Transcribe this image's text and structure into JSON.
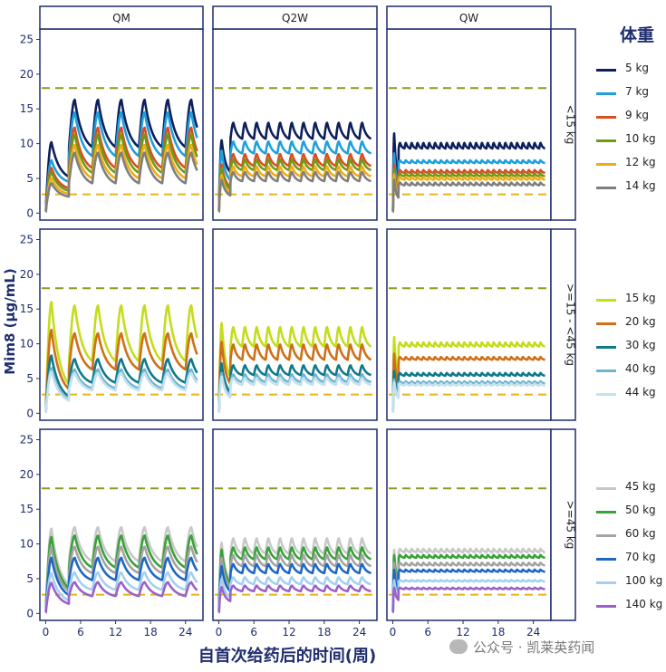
{
  "chart_data": {
    "type": "line",
    "xlabel": "自首次给药后的时间(周)",
    "ylabel": "Mim8 (µg/mL)",
    "xlim": [
      -1,
      27
    ],
    "ylim": [
      -1,
      26.5
    ],
    "x_ticks": [
      0,
      6,
      12,
      18,
      24
    ],
    "y_ticks": [
      0,
      5,
      10,
      15,
      20,
      25
    ],
    "reference_lines": [
      {
        "y": 18,
        "color": "#8b9a1a",
        "style": "dashed"
      },
      {
        "y": 2.7,
        "color": "#e8b316",
        "style": "dashed"
      }
    ],
    "columns": [
      "QM",
      "Q2W",
      "QW"
    ],
    "rows": [
      "<15 kg",
      ">=15 - <45 kg",
      ">=45 kg"
    ],
    "legend_title": "体重",
    "grid": false,
    "legend_position": "right",
    "groups": [
      {
        "row": "<15 kg",
        "series": [
          {
            "name": "5 kg",
            "color": "#0d1f5c",
            "ss": {
              "QM": [
                9.5,
                16.3
              ],
              "Q2W": [
                10.7,
                13.0
              ],
              "QW": [
                9.3,
                10.1
              ]
            },
            "first_peak": {
              "QM": 10.2,
              "Q2W": 10.5,
              "QW": 11.5
            }
          },
          {
            "name": "7 kg",
            "color": "#1ea0dc",
            "ss": {
              "QM": [
                8.2,
                14.5
              ],
              "Q2W": [
                8.6,
                10.3
              ],
              "QW": [
                7.2,
                7.6
              ]
            },
            "first_peak": {
              "QM": 7.6,
              "Q2W": 9.0,
              "QW": 8.6
            }
          },
          {
            "name": "9 kg",
            "color": "#d94f23",
            "ss": {
              "QM": [
                6.5,
                12.3
              ],
              "Q2W": [
                6.8,
                8.5
              ],
              "QW": [
                5.8,
                6.2
              ]
            },
            "first_peak": {
              "QM": 6.5,
              "Q2W": 7.0,
              "QW": 7.0
            }
          },
          {
            "name": "10 kg",
            "color": "#6f9a17",
            "ss": {
              "QM": [
                5.8,
                11.3
              ],
              "Q2W": [
                6.2,
                7.7
              ],
              "QW": [
                5.3,
                5.7
              ]
            },
            "first_peak": {
              "QM": 5.9,
              "Q2W": 6.5,
              "QW": 6.3
            }
          },
          {
            "name": "12 kg",
            "color": "#efac19",
            "ss": {
              "QM": [
                5.0,
                9.8
              ],
              "Q2W": [
                5.3,
                6.7
              ],
              "QW": [
                4.8,
                5.2
              ]
            },
            "first_peak": {
              "QM": 5.0,
              "Q2W": 5.5,
              "QW": 5.6
            }
          },
          {
            "name": "14 kg",
            "color": "#7f7f7f",
            "ss": {
              "QM": [
                4.3,
                8.7
              ],
              "Q2W": [
                4.6,
                5.9
              ],
              "QW": [
                4.0,
                4.4
              ]
            },
            "first_peak": {
              "QM": 4.3,
              "Q2W": 4.8,
              "QW": 4.8
            }
          }
        ]
      },
      {
        "row": ">=15 - <45 kg",
        "series": [
          {
            "name": "15 kg",
            "color": "#c5dc1b",
            "ss": {
              "QM": [
                7.5,
                15.5
              ],
              "Q2W": [
                9.6,
                12.4
              ],
              "QW": [
                9.6,
                10.2
              ]
            },
            "first_peak": {
              "QM": 16.0,
              "Q2W": 13.0,
              "QW": 11.0
            }
          },
          {
            "name": "20 kg",
            "color": "#cf7018",
            "ss": {
              "QM": [
                6.3,
                11.5
              ],
              "Q2W": [
                7.7,
                9.9
              ],
              "QW": [
                7.7,
                8.1
              ]
            },
            "first_peak": {
              "QM": 12.0,
              "Q2W": 10.3,
              "QW": 8.6
            }
          },
          {
            "name": "30 kg",
            "color": "#0f7a8a",
            "ss": {
              "QM": [
                4.4,
                7.8
              ],
              "Q2W": [
                5.5,
                6.9
              ],
              "QW": [
                5.4,
                5.8
              ]
            },
            "first_peak": {
              "QM": 8.3,
              "Q2W": 7.2,
              "QW": 6.1
            }
          },
          {
            "name": "40 kg",
            "color": "#6fb3cf",
            "ss": {
              "QM": [
                3.6,
                6.3
              ],
              "Q2W": [
                4.5,
                5.6
              ],
              "QW": [
                4.3,
                4.6
              ]
            },
            "first_peak": {
              "QM": 6.5,
              "Q2W": 5.8,
              "QW": 4.9
            }
          },
          {
            "name": "44 kg",
            "color": "#c3e1ef",
            "ss": {
              "QM": [
                3.3,
                5.8
              ],
              "Q2W": [
                4.1,
                5.1
              ],
              "QW": [
                4.0,
                4.3
              ]
            },
            "first_peak": {
              "QM": 6.0,
              "Q2W": 5.3,
              "QW": 4.5
            }
          }
        ]
      },
      {
        "row": ">=45 kg",
        "series": [
          {
            "name": "45 kg",
            "color": "#c8c8c8",
            "ss": {
              "QM": [
                7.5,
                12.4
              ],
              "Q2W": [
                8.6,
                10.8
              ],
              "QW": [
                8.8,
                9.3
              ]
            },
            "first_peak": {
              "QM": 12.2,
              "Q2W": 10.2,
              "QW": 9.2
            }
          },
          {
            "name": "50 kg",
            "color": "#3aa13a",
            "ss": {
              "QM": [
                6.6,
                11.2
              ],
              "Q2W": [
                7.8,
                9.5
              ],
              "QW": [
                8.0,
                8.4
              ]
            },
            "first_peak": {
              "QM": 11.0,
              "Q2W": 9.2,
              "QW": 8.4
            }
          },
          {
            "name": "60 kg",
            "color": "#a3a3a3",
            "ss": {
              "QM": [
                5.8,
                9.6
              ],
              "Q2W": [
                6.8,
                8.4
              ],
              "QW": [
                6.9,
                7.3
              ]
            },
            "first_peak": {
              "QM": 9.5,
              "Q2W": 8.0,
              "QW": 7.3
            }
          },
          {
            "name": "70 kg",
            "color": "#1f67c4",
            "ss": {
              "QM": [
                4.8,
                8.0
              ],
              "Q2W": [
                5.8,
                7.1
              ],
              "QW": [
                6.0,
                6.3
              ]
            },
            "first_peak": {
              "QM": 8.0,
              "Q2W": 6.8,
              "QW": 6.3
            }
          },
          {
            "name": "100 kg",
            "color": "#a5cff0",
            "ss": {
              "QM": [
                3.4,
                5.9
              ],
              "Q2W": [
                4.2,
                5.2
              ],
              "QW": [
                4.6,
                4.8
              ]
            },
            "first_peak": {
              "QM": 5.8,
              "Q2W": 5.0,
              "QW": 4.8
            }
          },
          {
            "name": "140 kg",
            "color": "#9a62c9",
            "ss": {
              "QM": [
                2.5,
                4.5
              ],
              "Q2W": [
                3.2,
                4.0
              ],
              "QW": [
                3.5,
                3.7
              ]
            },
            "first_peak": {
              "QM": 4.4,
              "Q2W": 3.8,
              "QW": 3.7
            }
          }
        ]
      }
    ]
  },
  "watermark": "公众号 · 凯莱英药闻"
}
